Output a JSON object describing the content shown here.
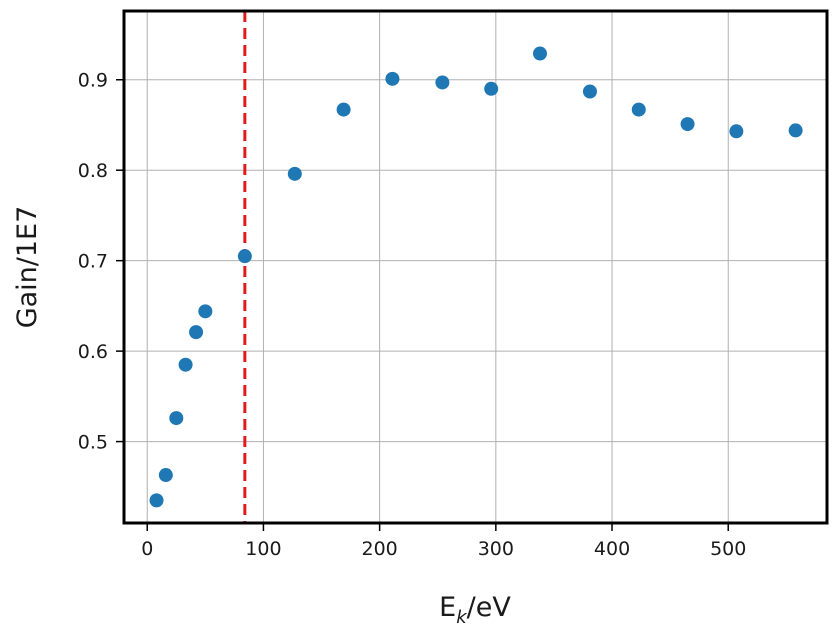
{
  "chart_data": {
    "type": "scatter",
    "xlabel": "E_k/eV",
    "xlabel_main": "E",
    "xlabel_sub": "k",
    "xlabel_tail": "/eV",
    "ylabel": "Gain/1E7",
    "xlim": [
      -20,
      585
    ],
    "ylim": [
      0.41,
      0.976
    ],
    "xticks": [
      0,
      100,
      200,
      300,
      400,
      500
    ],
    "yticks": [
      0.5,
      0.6,
      0.7,
      0.8,
      0.9
    ],
    "xtick_labels": [
      "0",
      "100",
      "200",
      "300",
      "400",
      "500"
    ],
    "ytick_labels": [
      "0.5",
      "0.6",
      "0.7",
      "0.8",
      "0.9"
    ],
    "grid": true,
    "point_color": "#1f77b4",
    "series": [
      {
        "x": [
          8,
          16,
          25,
          33,
          42,
          50,
          84,
          127,
          169,
          211,
          254,
          296,
          338,
          381,
          423,
          465,
          507,
          558
        ],
        "y": [
          0.435,
          0.463,
          0.526,
          0.585,
          0.621,
          0.644,
          0.705,
          0.796,
          0.867,
          0.901,
          0.897,
          0.89,
          0.929,
          0.887,
          0.867,
          0.851,
          0.843,
          0.844
        ]
      }
    ],
    "vline": {
      "x": 84,
      "color": "#e31a1c",
      "style": "dashed"
    }
  }
}
